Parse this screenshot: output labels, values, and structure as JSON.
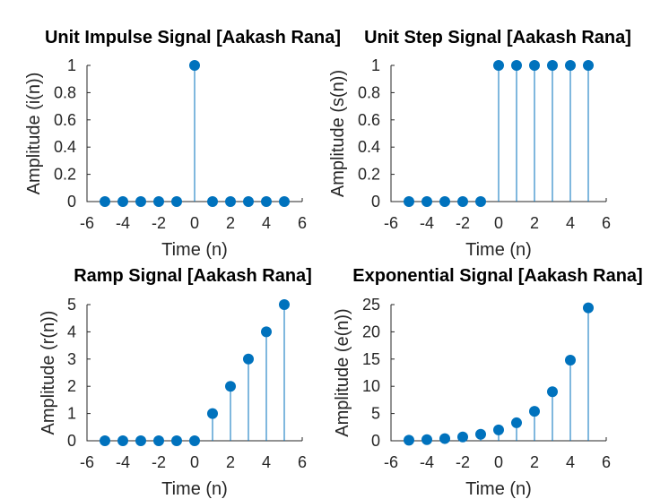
{
  "chart_data": [
    {
      "type": "stem",
      "title": "Unit Impulse Signal [Aakash Rana]",
      "xlabel": "Time (n)",
      "ylabel": "Amplitude (i(n))",
      "xlim": [
        -6,
        6
      ],
      "ylim": [
        0,
        1
      ],
      "xticks": [
        "-6",
        "-4",
        "-2",
        "0",
        "2",
        "4",
        "6"
      ],
      "yticks": [
        "0",
        "0.2",
        "0.4",
        "0.6",
        "0.8",
        "1"
      ],
      "x": [
        -5,
        -4,
        -3,
        -2,
        -1,
        0,
        1,
        2,
        3,
        4,
        5
      ],
      "y": [
        0,
        0,
        0,
        0,
        0,
        1,
        0,
        0,
        0,
        0,
        0
      ],
      "color": "#0072bd"
    },
    {
      "type": "stem",
      "title": "Unit Step Signal [Aakash Rana]",
      "xlabel": "Time (n)",
      "ylabel": "Amplitude (s(n))",
      "xlim": [
        -6,
        6
      ],
      "ylim": [
        0,
        1
      ],
      "xticks": [
        "-6",
        "-4",
        "-2",
        "0",
        "2",
        "4",
        "6"
      ],
      "yticks": [
        "0",
        "0.2",
        "0.4",
        "0.6",
        "0.8",
        "1"
      ],
      "x": [
        -5,
        -4,
        -3,
        -2,
        -1,
        0,
        1,
        2,
        3,
        4,
        5
      ],
      "y": [
        0,
        0,
        0,
        0,
        0,
        1,
        1,
        1,
        1,
        1,
        1
      ],
      "color": "#0072bd"
    },
    {
      "type": "stem",
      "title": "Ramp Signal [Aakash Rana]",
      "xlabel": "Time (n)",
      "ylabel": "Amplitude (r(n))",
      "xlim": [
        -6,
        6
      ],
      "ylim": [
        0,
        5
      ],
      "xticks": [
        "-6",
        "-4",
        "-2",
        "0",
        "2",
        "4",
        "6"
      ],
      "yticks": [
        "0",
        "1",
        "2",
        "3",
        "4",
        "5"
      ],
      "x": [
        -5,
        -4,
        -3,
        -2,
        -1,
        0,
        1,
        2,
        3,
        4,
        5
      ],
      "y": [
        0,
        0,
        0,
        0,
        0,
        0,
        1,
        2,
        3,
        4,
        5
      ],
      "color": "#0072bd"
    },
    {
      "type": "stem",
      "title": "Exponential Signal [Aakash Rana]",
      "xlabel": "Time (n)",
      "ylabel": "Amplitude (e(n))",
      "xlim": [
        -6,
        6
      ],
      "ylim": [
        0,
        25
      ],
      "xticks": [
        "-6",
        "-4",
        "-2",
        "0",
        "2",
        "4",
        "6"
      ],
      "yticks": [
        "0",
        "5",
        "10",
        "15",
        "20",
        "25"
      ],
      "x": [
        -5,
        -4,
        -3,
        -2,
        -1,
        0,
        1,
        2,
        3,
        4,
        5
      ],
      "y": [
        0.1,
        0.2,
        0.4,
        0.7,
        1.2,
        2.0,
        3.3,
        5.4,
        9.0,
        14.8,
        24.4
      ],
      "color": "#0072bd"
    }
  ]
}
